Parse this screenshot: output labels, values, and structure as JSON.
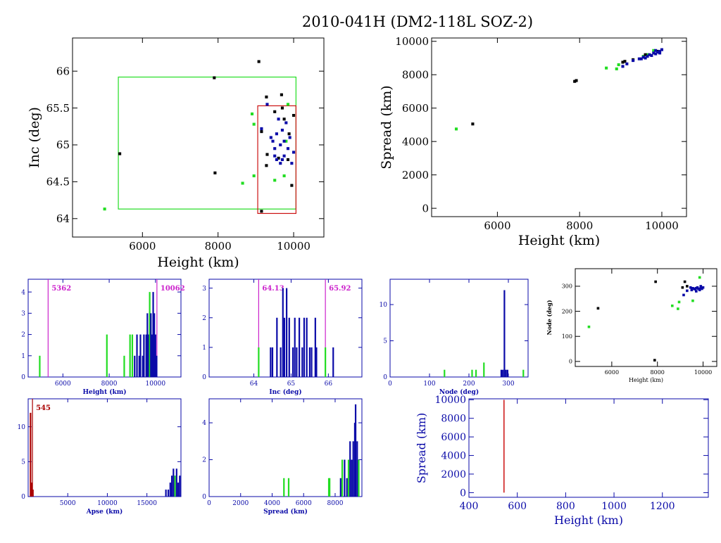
{
  "title": "2010-041H (DM2-118L SOZ-2)",
  "colors": {
    "black": "#000000",
    "green": "#22dd22",
    "blue": "#0a0aa8",
    "red": "#cc1111",
    "magenta": "#cc22cc",
    "darkred": "#aa0000"
  },
  "chart_data": [
    {
      "id": "inc_vs_height",
      "type": "scatter",
      "xlabel": "Height (km)",
      "ylabel": "Inc (deg)",
      "xlim": [
        4150,
        10800
      ],
      "ylim": [
        63.75,
        66.45
      ],
      "xticks": [
        6000,
        8000,
        10000
      ],
      "yticks": [
        64,
        64.5,
        65,
        65.5,
        66
      ],
      "ytick_labels": [
        "64",
        "64.5",
        "65",
        "65.5",
        "66"
      ],
      "boxes": [
        {
          "x0": 5362,
          "x1": 10062,
          "y0": 64.13,
          "y1": 65.92,
          "color": "green"
        },
        {
          "x0": 9050,
          "x1": 10062,
          "y0": 64.07,
          "y1": 65.53,
          "color": "red"
        }
      ],
      "series": [
        {
          "color": "black",
          "points": [
            [
              5400,
              64.88
            ],
            [
              7900,
              65.91
            ],
            [
              7920,
              64.62
            ],
            [
              9080,
              66.13
            ],
            [
              9280,
              65.65
            ],
            [
              9680,
              65.68
            ],
            [
              9500,
              65.45
            ],
            [
              9750,
              65.35
            ],
            [
              9880,
              65.15
            ],
            [
              9150,
              65.18
            ],
            [
              9850,
              64.8
            ],
            [
              9950,
              64.45
            ],
            [
              9600,
              64.82
            ],
            [
              9280,
              64.72
            ],
            [
              9300,
              64.87
            ],
            [
              9700,
              65.5
            ],
            [
              10000,
              65.4
            ],
            [
              9150,
              64.1
            ]
          ]
        },
        {
          "color": "green",
          "points": [
            [
              5000,
              64.13
            ],
            [
              8650,
              64.48
            ],
            [
              8900,
              65.42
            ],
            [
              8950,
              65.28
            ],
            [
              8950,
              64.58
            ],
            [
              9500,
              64.52
            ],
            [
              9750,
              64.58
            ],
            [
              9850,
              65.55
            ],
            [
              9800,
              65.05
            ]
          ]
        },
        {
          "color": "blue",
          "points": [
            [
              9150,
              65.22
            ],
            [
              9300,
              65.55
            ],
            [
              9400,
              65.1
            ],
            [
              9450,
              65.05
            ],
            [
              9500,
              64.95
            ],
            [
              9550,
              64.8
            ],
            [
              9600,
              65.35
            ],
            [
              9650,
              64.75
            ],
            [
              9700,
              65.2
            ],
            [
              9750,
              64.85
            ],
            [
              9800,
              65.3
            ],
            [
              9850,
              64.95
            ],
            [
              9900,
              65.1
            ],
            [
              9950,
              64.75
            ],
            [
              9650,
              65.0
            ],
            [
              9550,
              65.15
            ],
            [
              9700,
              64.8
            ],
            [
              10000,
              64.9
            ],
            [
              9500,
              64.85
            ],
            [
              9750,
              65.05
            ]
          ]
        }
      ]
    },
    {
      "id": "spread_vs_height",
      "type": "scatter",
      "xlabel": "Height (km)",
      "ylabel": "Spread (km)",
      "xlim": [
        4400,
        10600
      ],
      "ylim": [
        -500,
        10200
      ],
      "xticks": [
        6000,
        8000,
        10000
      ],
      "yticks": [
        0,
        2000,
        4000,
        6000,
        8000,
        10000
      ],
      "series": [
        {
          "color": "green",
          "points": [
            [
              5000,
              4750
            ],
            [
              8650,
              8400
            ],
            [
              8900,
              8350
            ],
            [
              8950,
              8600
            ],
            [
              9550,
              9100
            ],
            [
              9650,
              9200
            ],
            [
              9800,
              9450
            ]
          ]
        },
        {
          "color": "black",
          "points": [
            [
              5400,
              5050
            ],
            [
              7880,
              7600
            ],
            [
              7920,
              7650
            ],
            [
              9050,
              8750
            ],
            [
              9100,
              8800
            ],
            [
              9300,
              8900
            ],
            [
              9600,
              9200
            ],
            [
              9900,
              9400
            ]
          ]
        },
        {
          "color": "blue",
          "points": [
            [
              9050,
              8500
            ],
            [
              9150,
              8650
            ],
            [
              9300,
              8850
            ],
            [
              9500,
              8950
            ],
            [
              9550,
              9050
            ],
            [
              9650,
              9100
            ],
            [
              9700,
              9200
            ],
            [
              9750,
              9150
            ],
            [
              9800,
              9300
            ],
            [
              9850,
              9250
            ],
            [
              9900,
              9350
            ],
            [
              9950,
              9400
            ],
            [
              10000,
              9500
            ],
            [
              9600,
              9000
            ],
            [
              9450,
              8950
            ],
            [
              9850,
              9450
            ],
            [
              9950,
              9300
            ]
          ]
        }
      ]
    },
    {
      "id": "height_hist",
      "type": "bar",
      "xlabel": "Height (km)",
      "ylabel": "",
      "xlim": [
        4500,
        11100
      ],
      "ylim": [
        0,
        4.6
      ],
      "xticks": [
        6000,
        8000,
        10000
      ],
      "yticks": [
        0,
        1,
        2,
        3,
        4
      ],
      "vlines": [
        {
          "x": 5362,
          "label": "5362",
          "color": "magenta"
        },
        {
          "x": 10062,
          "label": "10062",
          "color": "magenta"
        }
      ],
      "bars": [
        {
          "x": 5000,
          "h": 1,
          "color": "green"
        },
        {
          "x": 7900,
          "h": 2,
          "color": "green"
        },
        {
          "x": 8650,
          "h": 1,
          "color": "green"
        },
        {
          "x": 8900,
          "h": 2,
          "color": "green"
        },
        {
          "x": 9000,
          "h": 2,
          "color": "green"
        },
        {
          "x": 9100,
          "h": 1,
          "color": "blue"
        },
        {
          "x": 9200,
          "h": 2,
          "color": "blue"
        },
        {
          "x": 9300,
          "h": 1,
          "color": "blue"
        },
        {
          "x": 9350,
          "h": 2,
          "color": "blue"
        },
        {
          "x": 9450,
          "h": 1,
          "color": "blue"
        },
        {
          "x": 9500,
          "h": 2,
          "color": "blue"
        },
        {
          "x": 9600,
          "h": 2,
          "color": "blue"
        },
        {
          "x": 9650,
          "h": 3,
          "color": "blue"
        },
        {
          "x": 9700,
          "h": 2,
          "color": "blue"
        },
        {
          "x": 9750,
          "h": 4,
          "color": "green"
        },
        {
          "x": 9800,
          "h": 3,
          "color": "blue"
        },
        {
          "x": 9850,
          "h": 2,
          "color": "blue"
        },
        {
          "x": 9900,
          "h": 4,
          "color": "blue"
        },
        {
          "x": 9950,
          "h": 3,
          "color": "blue"
        },
        {
          "x": 10000,
          "h": 2,
          "color": "blue"
        },
        {
          "x": 10050,
          "h": 1,
          "color": "blue"
        }
      ]
    },
    {
      "id": "inc_hist",
      "type": "bar",
      "xlabel": "Inc (deg)",
      "ylabel": "",
      "xlim": [
        62.8,
        66.9
      ],
      "ylim": [
        0,
        3.3
      ],
      "xticks": [
        64,
        65,
        66
      ],
      "yticks": [
        0,
        1,
        2,
        3
      ],
      "vlines": [
        {
          "x": 64.13,
          "label": "64.13",
          "color": "magenta"
        },
        {
          "x": 65.92,
          "label": "65.92",
          "color": "magenta"
        }
      ],
      "bars": [
        {
          "x": 64.13,
          "h": 1,
          "color": "green"
        },
        {
          "x": 64.45,
          "h": 1,
          "color": "blue"
        },
        {
          "x": 64.5,
          "h": 1,
          "color": "blue"
        },
        {
          "x": 64.62,
          "h": 2,
          "color": "blue"
        },
        {
          "x": 64.72,
          "h": 1,
          "color": "blue"
        },
        {
          "x": 64.78,
          "h": 3,
          "color": "blue"
        },
        {
          "x": 64.82,
          "h": 2,
          "color": "blue"
        },
        {
          "x": 64.88,
          "h": 3,
          "color": "blue"
        },
        {
          "x": 64.95,
          "h": 2,
          "color": "blue"
        },
        {
          "x": 65.05,
          "h": 1,
          "color": "blue"
        },
        {
          "x": 65.1,
          "h": 2,
          "color": "blue"
        },
        {
          "x": 65.15,
          "h": 1,
          "color": "blue"
        },
        {
          "x": 65.22,
          "h": 2,
          "color": "blue"
        },
        {
          "x": 65.3,
          "h": 1,
          "color": "blue"
        },
        {
          "x": 65.35,
          "h": 2,
          "color": "blue"
        },
        {
          "x": 65.42,
          "h": 2,
          "color": "blue"
        },
        {
          "x": 65.5,
          "h": 1,
          "color": "blue"
        },
        {
          "x": 65.55,
          "h": 1,
          "color": "blue"
        },
        {
          "x": 65.65,
          "h": 2,
          "color": "blue"
        },
        {
          "x": 65.68,
          "h": 1,
          "color": "blue"
        },
        {
          "x": 65.92,
          "h": 1,
          "color": "green"
        },
        {
          "x": 66.13,
          "h": 1,
          "color": "blue"
        }
      ]
    },
    {
      "id": "node_hist",
      "type": "bar",
      "xlabel": "Node (deg)",
      "ylabel": "",
      "xlim": [
        0,
        350
      ],
      "ylim": [
        0,
        13.5
      ],
      "xticks": [
        0,
        100,
        200,
        300
      ],
      "yticks": [
        0,
        5,
        10
      ],
      "bars": [
        {
          "x": 138,
          "h": 1,
          "color": "green"
        },
        {
          "x": 208,
          "h": 1,
          "color": "green"
        },
        {
          "x": 218,
          "h": 1,
          "color": "green"
        },
        {
          "x": 238,
          "h": 2,
          "color": "green"
        },
        {
          "x": 282,
          "h": 1,
          "color": "blue"
        },
        {
          "x": 286,
          "h": 1,
          "color": "blue"
        },
        {
          "x": 290,
          "h": 12,
          "color": "blue"
        },
        {
          "x": 294,
          "h": 1,
          "color": "blue"
        },
        {
          "x": 298,
          "h": 1,
          "color": "blue"
        },
        {
          "x": 338,
          "h": 1,
          "color": "green"
        }
      ]
    },
    {
      "id": "node_vs_height",
      "type": "scatter",
      "xlabel": "Height (km)",
      "ylabel": "Node (deg)",
      "xlim": [
        4400,
        10600
      ],
      "ylim": [
        -20,
        370
      ],
      "xticks": [
        6000,
        8000,
        10000
      ],
      "yticks": [
        0,
        100,
        200,
        300
      ],
      "series": [
        {
          "color": "green",
          "points": [
            [
              5000,
              138
            ],
            [
              8650,
              222
            ],
            [
              8900,
              210
            ],
            [
              8950,
              237
            ],
            [
              9550,
              242
            ],
            [
              9850,
              335
            ]
          ]
        },
        {
          "color": "black",
          "points": [
            [
              5400,
              212
            ],
            [
              7880,
              5
            ],
            [
              7920,
              318
            ],
            [
              9100,
              295
            ],
            [
              9300,
              300
            ],
            [
              9200,
              318
            ]
          ]
        },
        {
          "color": "blue",
          "points": [
            [
              9150,
              265
            ],
            [
              9300,
              282
            ],
            [
              9450,
              295
            ],
            [
              9500,
              285
            ],
            [
              9550,
              292
            ],
            [
              9600,
              290
            ],
            [
              9650,
              288
            ],
            [
              9700,
              292
            ],
            [
              9750,
              295
            ],
            [
              9800,
              290
            ],
            [
              9850,
              285
            ],
            [
              9900,
              292
            ],
            [
              9950,
              290
            ],
            [
              10000,
              295
            ],
            [
              9700,
              280
            ],
            [
              9900,
              300
            ]
          ]
        }
      ]
    },
    {
      "id": "apse_hist",
      "type": "bar",
      "xlabel": "Apse (km)",
      "ylabel": "",
      "xlim": [
        0,
        19300
      ],
      "ylim": [
        0,
        14
      ],
      "xticks": [
        5000,
        10000,
        15000
      ],
      "yticks": [
        0,
        5,
        10
      ],
      "vlines": [
        {
          "x": 545,
          "label": "545",
          "color": "darkred"
        }
      ],
      "bars": [
        {
          "x": 300,
          "h": 12,
          "color": "darkred"
        },
        {
          "x": 450,
          "h": 2,
          "color": "darkred"
        },
        {
          "x": 600,
          "h": 1,
          "color": "darkred"
        },
        {
          "x": 17400,
          "h": 1,
          "color": "blue"
        },
        {
          "x": 17700,
          "h": 1,
          "color": "blue"
        },
        {
          "x": 17950,
          "h": 2,
          "color": "blue"
        },
        {
          "x": 18150,
          "h": 3,
          "color": "blue"
        },
        {
          "x": 18350,
          "h": 4,
          "color": "blue"
        },
        {
          "x": 18550,
          "h": 3,
          "color": "green"
        },
        {
          "x": 18750,
          "h": 4,
          "color": "blue"
        },
        {
          "x": 18950,
          "h": 2,
          "color": "blue"
        },
        {
          "x": 19150,
          "h": 3,
          "color": "blue"
        }
      ]
    },
    {
      "id": "spread_hist",
      "type": "bar",
      "xlabel": "Spread (km)",
      "ylabel": "",
      "xlim": [
        0,
        9700
      ],
      "ylim": [
        0,
        5.3
      ],
      "xticks": [
        0,
        2000,
        4000,
        6000,
        8000
      ],
      "yticks": [
        0,
        2,
        4
      ],
      "bars": [
        {
          "x": 4750,
          "h": 1,
          "color": "green"
        },
        {
          "x": 5050,
          "h": 1,
          "color": "green"
        },
        {
          "x": 7600,
          "h": 1,
          "color": "green"
        },
        {
          "x": 7650,
          "h": 1,
          "color": "green"
        },
        {
          "x": 8350,
          "h": 1,
          "color": "blue"
        },
        {
          "x": 8450,
          "h": 2,
          "color": "green"
        },
        {
          "x": 8600,
          "h": 2,
          "color": "blue"
        },
        {
          "x": 8750,
          "h": 1,
          "color": "blue"
        },
        {
          "x": 8850,
          "h": 2,
          "color": "green"
        },
        {
          "x": 8950,
          "h": 3,
          "color": "blue"
        },
        {
          "x": 9050,
          "h": 2,
          "color": "blue"
        },
        {
          "x": 9150,
          "h": 3,
          "color": "blue"
        },
        {
          "x": 9250,
          "h": 4,
          "color": "blue"
        },
        {
          "x": 9300,
          "h": 5,
          "color": "blue"
        },
        {
          "x": 9400,
          "h": 3,
          "color": "blue"
        },
        {
          "x": 9500,
          "h": 2,
          "color": "green"
        }
      ]
    },
    {
      "id": "spread_vs_height_small",
      "type": "line",
      "xlabel": "Height (km)",
      "ylabel": "Spread (km)",
      "xlim": [
        400,
        1390
      ],
      "ylim": [
        -500,
        10100
      ],
      "xticks": [
        400,
        600,
        800,
        1000,
        1200
      ],
      "yticks": [
        0,
        2000,
        4000,
        6000,
        8000,
        10000
      ],
      "lines": [
        {
          "color": "red",
          "x": 545,
          "y0": 0,
          "y1": 10000
        }
      ]
    }
  ]
}
